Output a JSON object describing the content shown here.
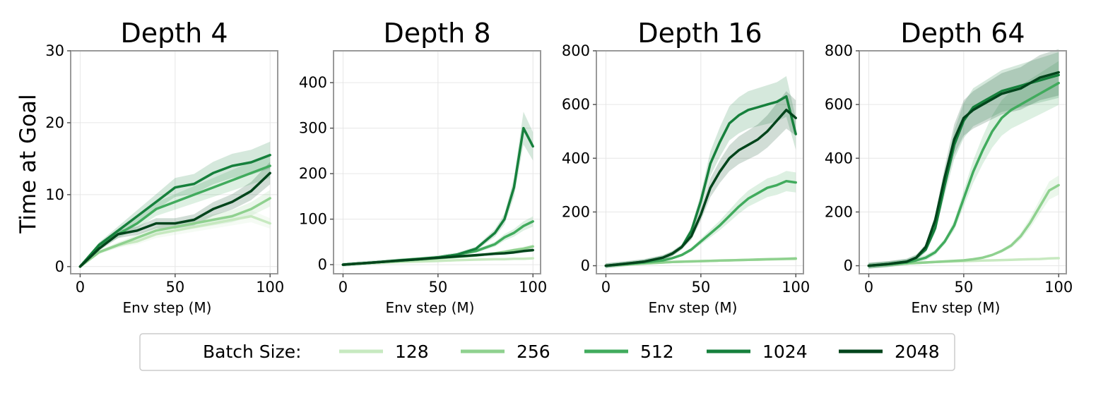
{
  "ylabel": "Time at Goal",
  "legend": {
    "title": "Batch Size:",
    "entries": [
      {
        "label": "128",
        "color": "#c7e9c0"
      },
      {
        "label": "256",
        "color": "#8fd18f"
      },
      {
        "label": "512",
        "color": "#41ab5d"
      },
      {
        "label": "1024",
        "color": "#16803c"
      },
      {
        "label": "2048",
        "color": "#00441b"
      }
    ]
  },
  "chart_data": [
    {
      "type": "line",
      "title": "Depth 4",
      "xlabel": "Env step (M)",
      "ylabel": "Time at Goal",
      "xlim": [
        -5,
        104
      ],
      "ylim": [
        -1,
        30
      ],
      "xticks": [
        0,
        50,
        100
      ],
      "yticks": [
        0,
        10,
        20,
        30
      ],
      "grid": true,
      "x": [
        0,
        10,
        20,
        30,
        40,
        50,
        60,
        70,
        80,
        90,
        100
      ],
      "series": [
        {
          "name": "128",
          "values": [
            0,
            2,
            3,
            3.5,
            4.5,
            5,
            5.5,
            6,
            6.5,
            7,
            6
          ]
        },
        {
          "name": "256",
          "values": [
            0,
            2,
            3,
            4,
            5,
            5.5,
            6,
            6.5,
            7,
            8,
            9.5
          ]
        },
        {
          "name": "512",
          "values": [
            0,
            3,
            4.5,
            6,
            8,
            9,
            10,
            11,
            12,
            13,
            14
          ]
        },
        {
          "name": "1024",
          "values": [
            0,
            3,
            5,
            7,
            9,
            11,
            11.5,
            13,
            14,
            14.5,
            15.5
          ]
        },
        {
          "name": "2048",
          "values": [
            0,
            2.5,
            4.5,
            5,
            6,
            6,
            6.5,
            8,
            9,
            10.5,
            13
          ]
        }
      ]
    },
    {
      "type": "line",
      "title": "Depth 8",
      "xlabel": "Env step (M)",
      "ylabel": "",
      "xlim": [
        -5,
        104
      ],
      "ylim": [
        -20,
        470
      ],
      "xticks": [
        0,
        50,
        100
      ],
      "yticks": [
        0,
        100,
        200,
        300,
        400
      ],
      "grid": true,
      "x": [
        0,
        10,
        20,
        30,
        40,
        50,
        60,
        70,
        80,
        85,
        90,
        95,
        100
      ],
      "series": [
        {
          "name": "128",
          "values": [
            0,
            2,
            4,
            6,
            7,
            8,
            10,
            11,
            12,
            12,
            13,
            13,
            14
          ]
        },
        {
          "name": "256",
          "values": [
            0,
            3,
            6,
            8,
            11,
            14,
            17,
            20,
            25,
            28,
            32,
            35,
            40
          ]
        },
        {
          "name": "512",
          "values": [
            0,
            3,
            6,
            10,
            13,
            16,
            22,
            30,
            45,
            60,
            70,
            85,
            95
          ]
        },
        {
          "name": "1024",
          "values": [
            0,
            3,
            6,
            9,
            12,
            16,
            22,
            35,
            70,
            100,
            170,
            300,
            260
          ]
        },
        {
          "name": "2048",
          "values": [
            0,
            3,
            6,
            9,
            12,
            15,
            18,
            21,
            24,
            25,
            27,
            30,
            32
          ]
        }
      ]
    },
    {
      "type": "line",
      "title": "Depth 16",
      "xlabel": "Env step (M)",
      "ylabel": "",
      "xlim": [
        -5,
        104
      ],
      "ylim": [
        -30,
        800
      ],
      "xticks": [
        0,
        50,
        100
      ],
      "yticks": [
        0,
        200,
        400,
        600,
        800
      ],
      "grid": true,
      "x": [
        0,
        10,
        20,
        30,
        35,
        40,
        45,
        50,
        55,
        60,
        65,
        70,
        75,
        80,
        85,
        90,
        95,
        100
      ],
      "series": [
        {
          "name": "128",
          "values": [
            0,
            4,
            8,
            12,
            14,
            15,
            16,
            17,
            18,
            19,
            20,
            21,
            22,
            22,
            23,
            24,
            25,
            25
          ]
        },
        {
          "name": "256",
          "values": [
            0,
            4,
            8,
            12,
            14,
            15,
            16,
            17,
            18,
            19,
            20,
            21,
            22,
            23,
            24,
            25,
            26,
            27
          ]
        },
        {
          "name": "512",
          "values": [
            0,
            6,
            12,
            20,
            28,
            40,
            60,
            90,
            120,
            150,
            185,
            220,
            250,
            270,
            290,
            300,
            315,
            310
          ]
        },
        {
          "name": "1024",
          "values": [
            0,
            7,
            15,
            30,
            45,
            70,
            130,
            240,
            380,
            460,
            530,
            560,
            580,
            590,
            600,
            610,
            630,
            490
          ]
        },
        {
          "name": "2048",
          "values": [
            0,
            7,
            15,
            30,
            45,
            70,
            110,
            190,
            290,
            350,
            400,
            430,
            450,
            470,
            500,
            540,
            580,
            550
          ]
        }
      ]
    },
    {
      "type": "line",
      "title": "Depth 64",
      "xlabel": "Env step (M)",
      "ylabel": "",
      "xlim": [
        -5,
        104
      ],
      "ylim": [
        -30,
        800
      ],
      "xticks": [
        0,
        50,
        100
      ],
      "yticks": [
        0,
        200,
        400,
        600,
        800
      ],
      "grid": true,
      "x": [
        0,
        10,
        20,
        25,
        30,
        35,
        40,
        45,
        50,
        55,
        60,
        65,
        70,
        75,
        80,
        85,
        90,
        95,
        100
      ],
      "series": [
        {
          "name": "128",
          "values": [
            0,
            4,
            8,
            10,
            12,
            14,
            15,
            16,
            17,
            18,
            19,
            20,
            21,
            22,
            23,
            24,
            25,
            27,
            28
          ]
        },
        {
          "name": "256",
          "values": [
            0,
            4,
            8,
            10,
            12,
            14,
            16,
            18,
            20,
            24,
            30,
            40,
            55,
            75,
            110,
            160,
            220,
            280,
            300
          ]
        },
        {
          "name": "512",
          "values": [
            0,
            5,
            12,
            20,
            30,
            50,
            90,
            150,
            250,
            350,
            430,
            500,
            550,
            580,
            600,
            620,
            640,
            660,
            680
          ]
        },
        {
          "name": "1024",
          "values": [
            0,
            6,
            15,
            30,
            60,
            140,
            300,
            450,
            540,
            590,
            610,
            630,
            650,
            660,
            670,
            680,
            690,
            700,
            710
          ]
        },
        {
          "name": "2048",
          "values": [
            0,
            6,
            15,
            30,
            70,
            170,
            330,
            470,
            550,
            580,
            600,
            620,
            640,
            650,
            660,
            680,
            700,
            710,
            720
          ]
        }
      ]
    }
  ]
}
